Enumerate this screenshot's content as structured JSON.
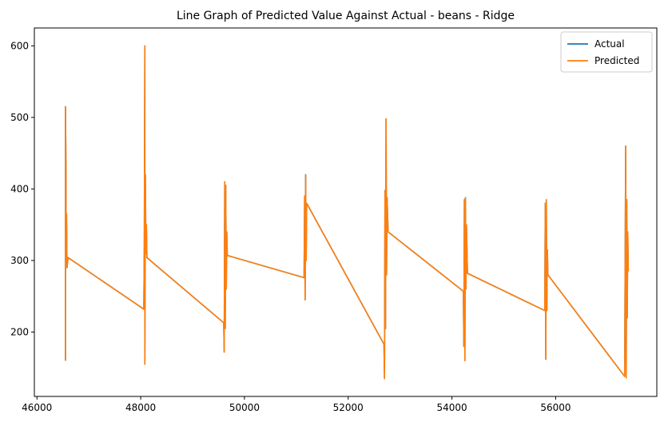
{
  "chart_data": {
    "type": "line",
    "title": "Line Graph of Predicted Value Against Actual - beans  - Ridge",
    "xlabel": "",
    "ylabel": "",
    "xlim": [
      45950,
      57950
    ],
    "ylim": [
      110,
      625
    ],
    "xticks": [
      46000,
      48000,
      50000,
      52000,
      54000,
      56000
    ],
    "xtick_labels": [
      "46000",
      "48000",
      "50000",
      "52000",
      "54000",
      "56000"
    ],
    "yticks": [
      200,
      300,
      400,
      500,
      600
    ],
    "ytick_labels": [
      "200",
      "300",
      "400",
      "500",
      "600"
    ],
    "grid": false,
    "legend": "top-right",
    "series": [
      {
        "name": "Actual",
        "color": "#1f77b4",
        "points": [
          [
            46550,
            160
          ],
          [
            46550,
            515
          ],
          [
            46560,
            420
          ],
          [
            46560,
            300
          ],
          [
            46570,
            365
          ],
          [
            46580,
            290
          ],
          [
            46600,
            304
          ],
          [
            48060,
            232
          ],
          [
            48070,
            320
          ],
          [
            48080,
            600
          ],
          [
            48080,
            155
          ],
          [
            48090,
            420
          ],
          [
            48100,
            310
          ],
          [
            48110,
            350
          ],
          [
            48120,
            304
          ],
          [
            49600,
            213
          ],
          [
            49610,
            172
          ],
          [
            49620,
            410
          ],
          [
            49630,
            205
          ],
          [
            49640,
            405
          ],
          [
            49650,
            260
          ],
          [
            49660,
            340
          ],
          [
            49670,
            307
          ],
          [
            51150,
            276
          ],
          [
            51160,
            390
          ],
          [
            51170,
            245
          ],
          [
            51180,
            420
          ],
          [
            51190,
            300
          ],
          [
            51200,
            380
          ],
          [
            52690,
            183
          ],
          [
            52700,
            135
          ],
          [
            52710,
            398
          ],
          [
            52720,
            205
          ],
          [
            52730,
            498
          ],
          [
            52740,
            280
          ],
          [
            52750,
            388
          ],
          [
            52770,
            340
          ],
          [
            54220,
            257
          ],
          [
            54230,
            180
          ],
          [
            54240,
            385
          ],
          [
            54250,
            160
          ],
          [
            54260,
            388
          ],
          [
            54270,
            260
          ],
          [
            54280,
            350
          ],
          [
            54300,
            282
          ],
          [
            55790,
            230
          ],
          [
            55800,
            380
          ],
          [
            55810,
            162
          ],
          [
            55820,
            385
          ],
          [
            55830,
            230
          ],
          [
            55840,
            315
          ],
          [
            55850,
            280
          ],
          [
            57330,
            138
          ],
          [
            57340,
            300
          ],
          [
            57350,
            460
          ],
          [
            57360,
            136
          ],
          [
            57370,
            385
          ],
          [
            57380,
            220
          ],
          [
            57390,
            340
          ],
          [
            57400,
            285
          ]
        ]
      },
      {
        "name": "Predicted",
        "color": "#ff7f0e",
        "points": [
          [
            46550,
            160
          ],
          [
            46550,
            515
          ],
          [
            46560,
            420
          ],
          [
            46560,
            300
          ],
          [
            46570,
            365
          ],
          [
            46580,
            290
          ],
          [
            46600,
            304
          ],
          [
            48060,
            232
          ],
          [
            48070,
            320
          ],
          [
            48080,
            600
          ],
          [
            48080,
            155
          ],
          [
            48090,
            420
          ],
          [
            48100,
            310
          ],
          [
            48110,
            350
          ],
          [
            48120,
            304
          ],
          [
            49600,
            213
          ],
          [
            49610,
            172
          ],
          [
            49620,
            410
          ],
          [
            49630,
            205
          ],
          [
            49640,
            405
          ],
          [
            49650,
            260
          ],
          [
            49660,
            340
          ],
          [
            49670,
            307
          ],
          [
            51150,
            276
          ],
          [
            51160,
            390
          ],
          [
            51170,
            245
          ],
          [
            51180,
            420
          ],
          [
            51190,
            300
          ],
          [
            51200,
            380
          ],
          [
            52690,
            183
          ],
          [
            52700,
            135
          ],
          [
            52710,
            398
          ],
          [
            52720,
            205
          ],
          [
            52730,
            498
          ],
          [
            52740,
            280
          ],
          [
            52750,
            388
          ],
          [
            52770,
            340
          ],
          [
            54220,
            257
          ],
          [
            54230,
            180
          ],
          [
            54240,
            385
          ],
          [
            54250,
            160
          ],
          [
            54260,
            388
          ],
          [
            54270,
            260
          ],
          [
            54280,
            350
          ],
          [
            54300,
            282
          ],
          [
            55790,
            230
          ],
          [
            55800,
            380
          ],
          [
            55810,
            162
          ],
          [
            55820,
            385
          ],
          [
            55830,
            230
          ],
          [
            55840,
            315
          ],
          [
            55850,
            280
          ],
          [
            57330,
            138
          ],
          [
            57340,
            300
          ],
          [
            57350,
            460
          ],
          [
            57360,
            136
          ],
          [
            57370,
            385
          ],
          [
            57380,
            220
          ],
          [
            57390,
            340
          ],
          [
            57400,
            285
          ]
        ]
      }
    ]
  }
}
